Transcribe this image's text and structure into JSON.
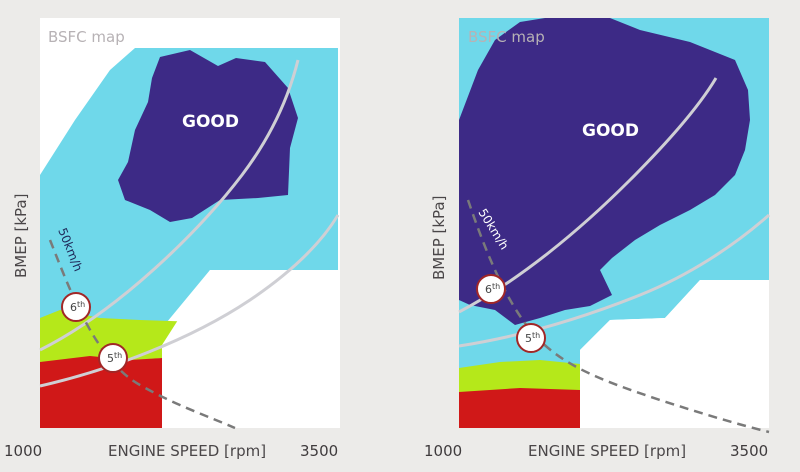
{
  "left_map": {
    "title": "BSFC map",
    "y_axis_label": "BMEP [kPa]",
    "x_axis_label": "ENGINE SPEED [rpm]",
    "x_min_label": "1000",
    "x_max_label": "3500",
    "region_label": "GOOD",
    "speed_label": "50km/h",
    "gear_6": "6",
    "gear_5": "5",
    "gear_suffix": "th"
  },
  "right_map": {
    "title": "BSFC map",
    "y_axis_label": "BMEP [kPa]",
    "x_axis_label": "ENGINE SPEED [rpm]",
    "x_min_label": "1000",
    "x_max_label": "3500",
    "region_label": "GOOD",
    "speed_label": "50km/h",
    "gear_6": "6",
    "gear_5": "5",
    "gear_suffix": "th"
  },
  "colors": {
    "background": "#ecebe9",
    "map_outer": "#ffffff",
    "zone_cyan": "#6fd8ea",
    "zone_good": "#3d2a86",
    "zone_lime": "#b5e81a",
    "zone_red": "#d01818",
    "curve": "#cfcfd4",
    "dashed": "#7a7a7a",
    "gear_ring": "#a12727"
  }
}
